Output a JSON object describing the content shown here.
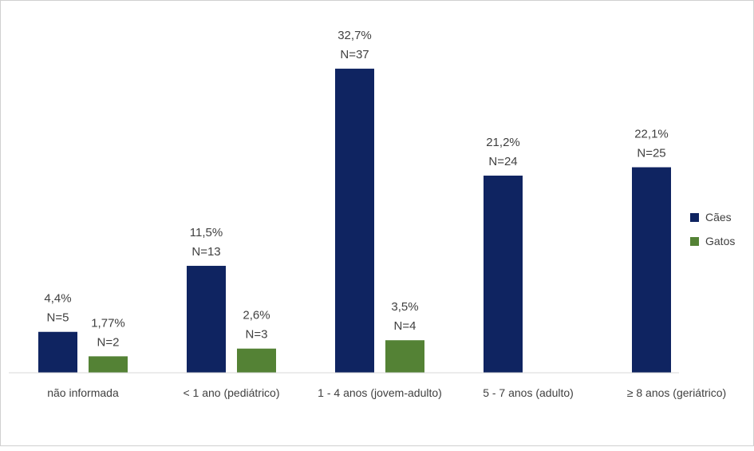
{
  "chart_data": {
    "type": "bar",
    "title": "",
    "xlabel": "",
    "ylabel": "",
    "ylim": [
      0,
      35
    ],
    "grid": false,
    "legend_position": "right",
    "categories": [
      "não informada",
      "< 1 ano (pediátrico)",
      "1 - 4 anos (jovem-adulto)",
      "5 - 7 anos (adulto)",
      "≥ 8 anos (geriátrico)"
    ],
    "series": [
      {
        "name": "Cães",
        "color": "#0f2461",
        "values": [
          4.4,
          11.5,
          32.7,
          21.2,
          22.1
        ],
        "labels_pct": [
          "4,4%",
          "11,5%",
          "32,7%",
          "21,2%",
          "22,1%"
        ],
        "labels_n": [
          "N=5",
          "N=13",
          "N=37",
          "N=24",
          "N=25"
        ]
      },
      {
        "name": "Gatos",
        "color": "#548235",
        "values": [
          1.77,
          2.6,
          3.5,
          null,
          null
        ],
        "labels_pct": [
          "1,77%",
          "2,6%",
          "3,5%",
          "",
          ""
        ],
        "labels_n": [
          "N=2",
          "N=3",
          "N=4",
          "",
          ""
        ]
      }
    ]
  }
}
